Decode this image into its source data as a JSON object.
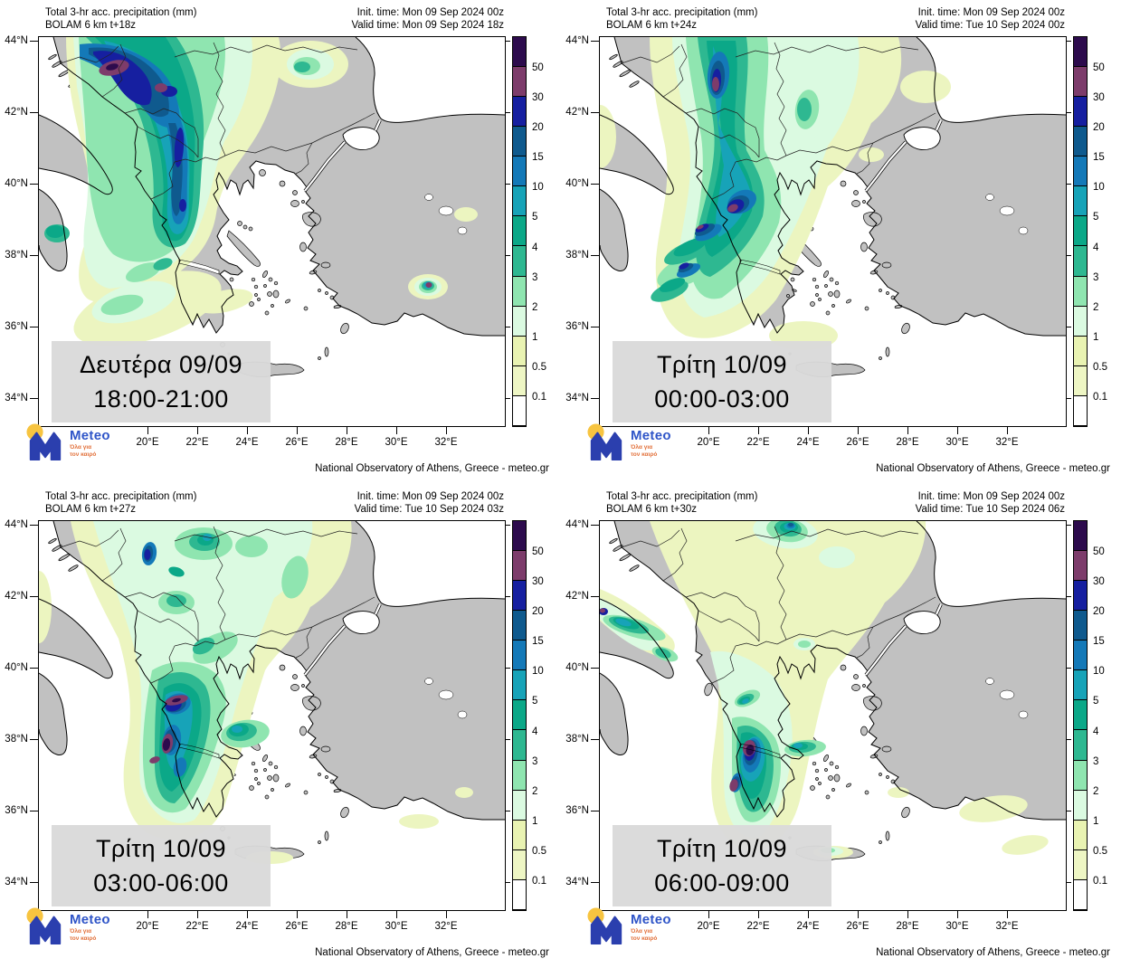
{
  "brand": {
    "logo_text": "Meteo",
    "tagline_line1": "Όλα για",
    "tagline_line2": "τον καιρό"
  },
  "footer": "National Observatory of Athens, Greece - meteo.gr",
  "colorbar": {
    "tick_labels": [
      "50",
      "30",
      "20",
      "15",
      "10",
      "5",
      "4",
      "3",
      "2",
      "1",
      "0.5",
      "0.1"
    ],
    "band_colors": [
      "#2d0b4d",
      "#7d3c6b",
      "#161fa0",
      "#0f5a8e",
      "#1479b8",
      "#17a3b8",
      "#0ba888",
      "#2eb891",
      "#8fe5b0",
      "#dbfae1",
      "#e9f3b2",
      "#eef6c4",
      "#ffffff"
    ]
  },
  "axes": {
    "lat_labels": [
      "44°N",
      "42°N",
      "40°N",
      "38°N",
      "36°N",
      "34°N"
    ],
    "lon_labels": [
      "20°E",
      "22°E",
      "24°E",
      "26°E",
      "28°E",
      "30°E",
      "32°E"
    ]
  },
  "colors": {
    "land": "#c1c1c1",
    "sea": "#ffffff",
    "coastline": "#000000",
    "date_box": "#dadada",
    "logo_blue": "#2b3fae",
    "logo_text_blue": "#2f55c8",
    "logo_yellow": "#f7c440",
    "logo_orange": "#e2703a"
  },
  "panels": [
    {
      "title_line1": "Total 3-hr acc. precipitation (mm)",
      "title_line2": "BOLAM 6 km t+18z",
      "init_time": "Init. time: Mon 09 Sep 2024 00z",
      "valid_time": "Valid time: Mon 09 Sep 2024 18z",
      "label_line1": "Δευτέρα 09/09",
      "label_line2": "18:00-21:00"
    },
    {
      "title_line1": "Total 3-hr acc. precipitation (mm)",
      "title_line2": "BOLAM 6 km t+24z",
      "init_time": "Init. time: Mon 09 Sep 2024 00z",
      "valid_time": "Valid time: Tue 10 Sep 2024 00z",
      "label_line1": "Τρίτη 10/09",
      "label_line2": "00:00-03:00"
    },
    {
      "title_line1": "Total 3-hr acc. precipitation (mm)",
      "title_line2": "BOLAM 6 km t+27z",
      "init_time": "Init. time: Mon 09 Sep 2024 00z",
      "valid_time": "Valid time: Tue 10 Sep 2024 03z",
      "label_line1": "Τρίτη 10/09",
      "label_line2": "03:00-06:00"
    },
    {
      "title_line1": "Total 3-hr acc. precipitation (mm)",
      "title_line2": "BOLAM 6 km t+30z",
      "init_time": "Init. time: Mon 09 Sep 2024 00z",
      "valid_time": "Valid time: Tue 10 Sep 2024 06z",
      "label_line1": "Τρίτη 10/09",
      "label_line2": "06:00-09:00"
    }
  ]
}
